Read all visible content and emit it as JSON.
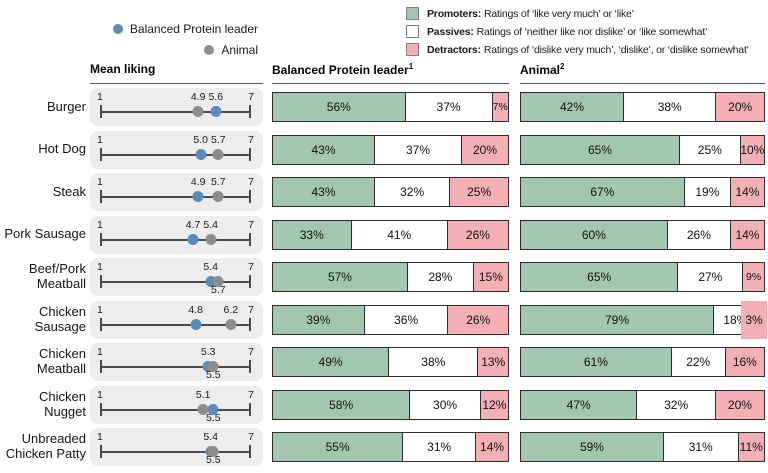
{
  "series_legend": [
    {
      "label": "Balanced Protein leader",
      "color": "#5b8cb8"
    },
    {
      "label": "Animal",
      "color": "#8d8d8d"
    }
  ],
  "segment_legend": [
    {
      "term": "Promoters:",
      "desc": "Ratings of ‘like very much’ or ‘like’",
      "color": "#a3c6af"
    },
    {
      "term": "Passives:",
      "desc": "Ratings of ‘neither like nor dislike’ or ‘like somewhat’",
      "color": "#ffffff"
    },
    {
      "term": "Detractors:",
      "desc": "Ratings of ‘dislike very much’, ‘dislike’, or ‘dislike somewhat’",
      "color": "#f3afb3"
    }
  ],
  "headers": {
    "mean": "Mean liking",
    "bpl": "Balanced Protein leader",
    "bpl_sup": "1",
    "animal": "Animal",
    "animal_sup": "2"
  },
  "colors": {
    "promoters": "#a3c6af",
    "passives": "#ffffff",
    "detractors": "#f3afb3",
    "bpl_dot": "#5b8cb8",
    "animal_dot": "#8d8d8d",
    "panel": "#ededed",
    "bar_border": "#2e2e2e"
  },
  "chart_data": {
    "type": "bar",
    "subtype": "mean-liking dot plot (1-7 scale) + stacked horizontal promoter/passive/detractor bars",
    "categories": [
      "Burger",
      "Hot Dog",
      "Steak",
      "Pork Sausage",
      "Beef/Pork Meatball",
      "Chicken Sausage",
      "Chicken Meatball",
      "Chicken Nugget",
      "Unbreaded Chicken Patty"
    ],
    "mean_scale": {
      "min": 1,
      "max": 7
    },
    "mean_series": [
      {
        "name": "Balanced Protein leader",
        "color": "#5b8cb8",
        "values": [
          5.6,
          5.0,
          4.9,
          4.7,
          5.4,
          4.8,
          5.3,
          5.5,
          5.4
        ]
      },
      {
        "name": "Animal",
        "color": "#8d8d8d",
        "values": [
          4.9,
          5.7,
          5.7,
          5.4,
          5.7,
          6.2,
          5.5,
          5.1,
          5.5
        ]
      }
    ],
    "mean_label_side": [
      {
        "bpl": "above",
        "animal": "above"
      },
      {
        "bpl": "above",
        "animal": "above"
      },
      {
        "bpl": "above",
        "animal": "above"
      },
      {
        "bpl": "above",
        "animal": "above"
      },
      {
        "bpl": "above",
        "animal": "below"
      },
      {
        "bpl": "above",
        "animal": "above"
      },
      {
        "bpl": "above",
        "animal": "below"
      },
      {
        "bpl": "below",
        "animal": "above"
      },
      {
        "bpl": "above",
        "animal": "below"
      }
    ],
    "stacked_series_names": [
      "Promoters",
      "Passives",
      "Detractors"
    ],
    "bpl_bars": [
      [
        56,
        37,
        7
      ],
      [
        43,
        37,
        20
      ],
      [
        43,
        32,
        25
      ],
      [
        33,
        41,
        26
      ],
      [
        57,
        28,
        15
      ],
      [
        39,
        36,
        26
      ],
      [
        49,
        38,
        13
      ],
      [
        58,
        30,
        12
      ],
      [
        55,
        31,
        14
      ]
    ],
    "animal_bars": [
      [
        42,
        38,
        20
      ],
      [
        65,
        25,
        10
      ],
      [
        67,
        19,
        14
      ],
      [
        60,
        26,
        14
      ],
      [
        65,
        27,
        9
      ],
      [
        79,
        18,
        3
      ],
      [
        61,
        22,
        16
      ],
      [
        47,
        32,
        20
      ],
      [
        59,
        31,
        11
      ]
    ]
  }
}
